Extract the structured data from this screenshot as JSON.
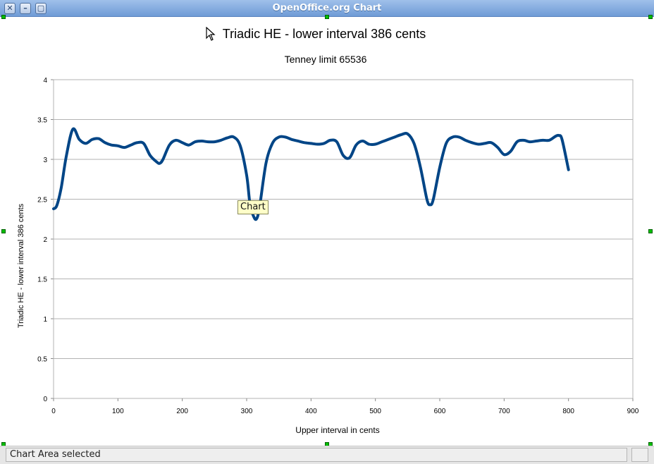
{
  "window": {
    "title": "OpenOffice.org Chart",
    "buttons": [
      "close",
      "minimize",
      "maximize"
    ]
  },
  "tooltip": "Chart",
  "status": {
    "text": "Chart Area selected"
  },
  "colors": {
    "series": "#004586",
    "grid": "#b3b3b3",
    "titlebar": "#7ea6db"
  },
  "chart_data": {
    "type": "line",
    "title": "Triadic HE - lower interval 386 cents",
    "subtitle": "Tenney limit 65536",
    "xlabel": "Upper interval in cents",
    "ylabel": "Triadic HE - lower interval 386 cents",
    "xlim": [
      0,
      900
    ],
    "ylim": [
      0,
      4
    ],
    "xticks": [
      "0",
      "100",
      "200",
      "300",
      "400",
      "500",
      "600",
      "700",
      "800",
      "900"
    ],
    "yticks": [
      "0",
      "0.5",
      "1",
      "1.5",
      "2",
      "2.5",
      "3",
      "3.5",
      "4"
    ],
    "grid": "horizontal",
    "smooth": true,
    "series": [
      {
        "x": [
          0,
          5,
          12,
          20,
          30,
          40,
          50,
          60,
          70,
          80,
          90,
          100,
          110,
          120,
          130,
          140,
          150,
          160,
          165,
          170,
          180,
          190,
          200,
          210,
          220,
          230,
          240,
          250,
          260,
          270,
          280,
          290,
          300,
          305,
          310,
          315,
          320,
          330,
          340,
          350,
          360,
          370,
          380,
          390,
          400,
          410,
          420,
          430,
          440,
          450,
          460,
          470,
          480,
          490,
          500,
          510,
          520,
          530,
          540,
          550,
          560,
          570,
          580,
          585,
          590,
          600,
          610,
          620,
          630,
          640,
          650,
          660,
          670,
          680,
          690,
          700,
          710,
          720,
          730,
          740,
          750,
          760,
          770,
          780,
          785,
          790,
          800
        ],
        "y": [
          2.38,
          2.42,
          2.65,
          3.05,
          3.38,
          3.25,
          3.2,
          3.25,
          3.26,
          3.21,
          3.18,
          3.17,
          3.15,
          3.18,
          3.21,
          3.2,
          3.05,
          2.97,
          2.95,
          3.0,
          3.18,
          3.24,
          3.21,
          3.18,
          3.22,
          3.23,
          3.22,
          3.22,
          3.24,
          3.27,
          3.28,
          3.17,
          2.8,
          2.45,
          2.3,
          2.25,
          2.4,
          2.95,
          3.2,
          3.28,
          3.28,
          3.25,
          3.23,
          3.21,
          3.2,
          3.19,
          3.2,
          3.24,
          3.22,
          3.05,
          3.02,
          3.18,
          3.23,
          3.19,
          3.19,
          3.22,
          3.25,
          3.28,
          3.31,
          3.32,
          3.2,
          2.9,
          2.5,
          2.43,
          2.5,
          2.9,
          3.2,
          3.28,
          3.28,
          3.24,
          3.21,
          3.19,
          3.2,
          3.21,
          3.15,
          3.06,
          3.1,
          3.22,
          3.24,
          3.22,
          3.23,
          3.24,
          3.24,
          3.29,
          3.3,
          3.25,
          2.87
        ]
      }
    ]
  }
}
